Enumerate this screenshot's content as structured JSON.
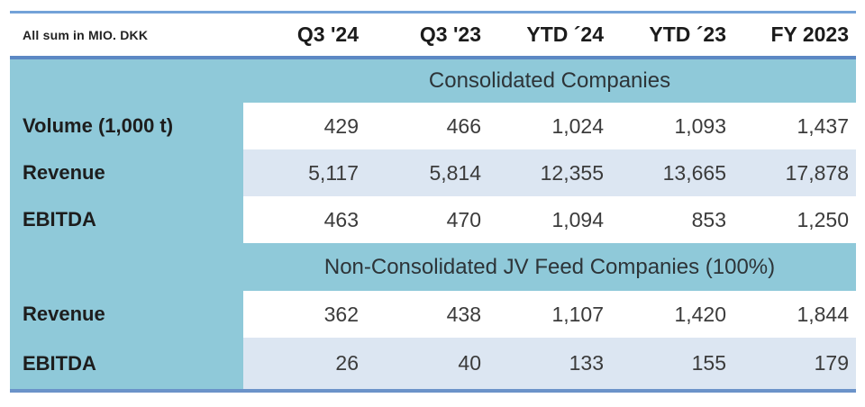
{
  "table": {
    "unit_label": "All sum in MIO. DKK",
    "columns": [
      "Q3 '24",
      "Q3 '23",
      "YTD ´24",
      "YTD ´23",
      "FY 2023"
    ],
    "sections": [
      {
        "header": "Consolidated Companies",
        "rows": [
          {
            "label": "Volume (1,000 t)",
            "values": [
              "429",
              "466",
              "1,024",
              "1,093",
              "1,437"
            ]
          },
          {
            "label": "Revenue",
            "values": [
              "5,117",
              "5,814",
              "12,355",
              "13,665",
              "17,878"
            ]
          },
          {
            "label": "EBITDA",
            "values": [
              "463",
              "470",
              "1,094",
              "853",
              "1,250"
            ]
          }
        ]
      },
      {
        "header": "Non-Consolidated JV Feed Companies (100%)",
        "rows": [
          {
            "label": "Revenue",
            "values": [
              "362",
              "438",
              "1,107",
              "1,420",
              "1,844"
            ]
          },
          {
            "label": "EBITDA",
            "values": [
              "26",
              "40",
              "133",
              "155",
              "179"
            ]
          }
        ]
      }
    ]
  },
  "colors": {
    "band_teal": "#8FC9D9",
    "row_tint": "#DCE6F2",
    "row_white": "#FFFFFF",
    "rule_top": "#73A2D8",
    "rule_header": "#5C88C4",
    "rule_bottom": "#6B93C9",
    "text_dark": "#1D1D1D",
    "text_number": "#3B3B3B"
  },
  "chart_data": {
    "type": "table",
    "title": "All sum in MIO. DKK",
    "columns": [
      "Q3 '24",
      "Q3 '23",
      "YTD ´24",
      "YTD ´23",
      "FY 2023"
    ],
    "sections": [
      {
        "name": "Consolidated Companies",
        "rows": [
          {
            "label": "Volume (1,000 t)",
            "values": [
              429,
              466,
              1024,
              1093,
              1437
            ]
          },
          {
            "label": "Revenue",
            "values": [
              5117,
              5814,
              12355,
              13665,
              17878
            ]
          },
          {
            "label": "EBITDA",
            "values": [
              463,
              470,
              1094,
              853,
              1250
            ]
          }
        ]
      },
      {
        "name": "Non-Consolidated JV Feed Companies (100%)",
        "rows": [
          {
            "label": "Revenue",
            "values": [
              362,
              438,
              1107,
              1420,
              1844
            ]
          },
          {
            "label": "EBITDA",
            "values": [
              26,
              40,
              133,
              155,
              179
            ]
          }
        ]
      }
    ]
  }
}
